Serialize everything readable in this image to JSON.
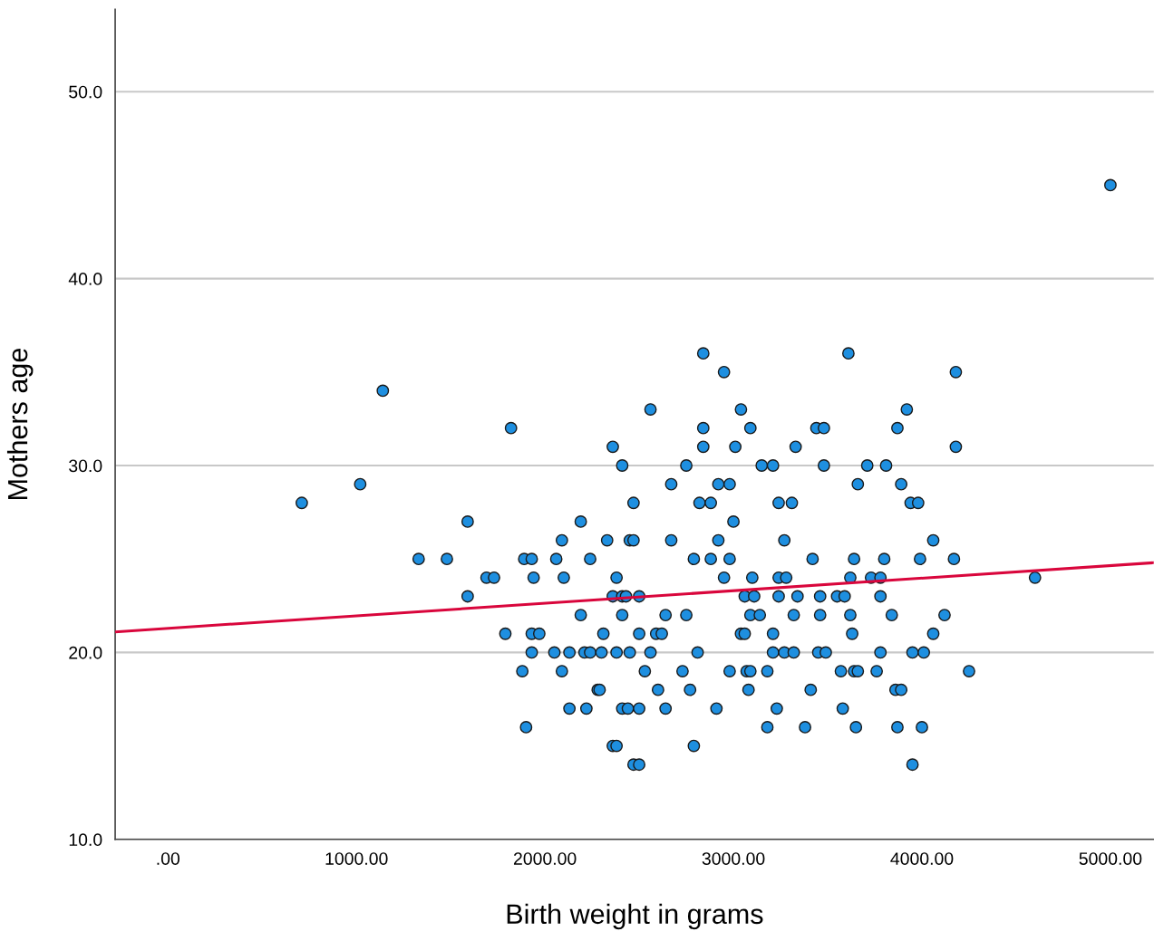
{
  "chart_data": {
    "type": "scatter",
    "xlabel": "Birth weight in grams",
    "ylabel": "Mothers age",
    "xlim": [
      -280,
      5230
    ],
    "ylim": [
      10,
      54.4
    ],
    "xticks": [
      {
        "value": 0,
        "label": ".00"
      },
      {
        "value": 1000,
        "label": "1000.00"
      },
      {
        "value": 2000,
        "label": "2000.00"
      },
      {
        "value": 3000,
        "label": "3000.00"
      },
      {
        "value": 4000,
        "label": "4000.00"
      },
      {
        "value": 5000,
        "label": "5000.00"
      }
    ],
    "yticks": [
      {
        "value": 10,
        "label": "10.0"
      },
      {
        "value": 20,
        "label": "20.0"
      },
      {
        "value": 30,
        "label": "30.0"
      },
      {
        "value": 40,
        "label": "40.0"
      },
      {
        "value": 50,
        "label": "50.0"
      }
    ],
    "grid": "y",
    "marker": "circle",
    "series": [
      {
        "color": "#1e8fe0",
        "x": [
          5000,
          2840,
          3610,
          2950,
          4180,
          1140,
          2560,
          3040,
          3920,
          1820,
          2840,
          3090,
          3440,
          3480,
          3870,
          2360,
          2840,
          3010,
          3330,
          4180,
          2410,
          2750,
          3150,
          3210,
          3480,
          3710,
          3810,
          1020,
          2670,
          2920,
          2980,
          3660,
          3890,
          710,
          2470,
          2820,
          2880,
          3240,
          3310,
          3940,
          3980,
          1590,
          2190,
          3000,
          2090,
          2330,
          2450,
          2470,
          2670,
          2920,
          3270,
          4060,
          1330,
          1480,
          1890,
          1930,
          2060,
          2240,
          2790,
          2880,
          2980,
          3420,
          3640,
          3800,
          3990,
          4170,
          1690,
          1730,
          1940,
          2100,
          2380,
          2950,
          3100,
          3240,
          3280,
          3620,
          3730,
          3780,
          4600,
          1590,
          2360,
          2410,
          2430,
          2500,
          3060,
          3110,
          3240,
          3340,
          3460,
          3550,
          3590,
          3780,
          2190,
          2410,
          2640,
          2750,
          3090,
          3140,
          3320,
          3460,
          3620,
          3840,
          4120,
          1790,
          1930,
          1970,
          2310,
          2500,
          2590,
          2620,
          3040,
          3060,
          3210,
          3630,
          4060,
          1930,
          2050,
          2130,
          2210,
          2240,
          2300,
          2380,
          2450,
          2560,
          2810,
          3210,
          3270,
          3320,
          3450,
          3490,
          3780,
          3950,
          4010,
          1880,
          2090,
          2530,
          2730,
          2980,
          3070,
          3090,
          3180,
          3570,
          3640,
          3660,
          3760,
          4250,
          2280,
          2290,
          2600,
          2770,
          3080,
          3410,
          3860,
          3890,
          2130,
          2220,
          2410,
          2440,
          2500,
          2640,
          2910,
          3230,
          3580,
          1900,
          3180,
          3380,
          3650,
          3870,
          4000,
          2360,
          2380,
          2790,
          2470,
          2500,
          3950
        ],
        "values": [
          45,
          36,
          36,
          35,
          35,
          34,
          33,
          33,
          33,
          32,
          32,
          32,
          32,
          32,
          32,
          31,
          31,
          31,
          31,
          31,
          30,
          30,
          30,
          30,
          30,
          30,
          30,
          29,
          29,
          29,
          29,
          29,
          29,
          28,
          28,
          28,
          28,
          28,
          28,
          28,
          28,
          27,
          27,
          27,
          26,
          26,
          26,
          26,
          26,
          26,
          26,
          26,
          25,
          25,
          25,
          25,
          25,
          25,
          25,
          25,
          25,
          25,
          25,
          25,
          25,
          25,
          24,
          24,
          24,
          24,
          24,
          24,
          24,
          24,
          24,
          24,
          24,
          24,
          24,
          23,
          23,
          23,
          23,
          23,
          23,
          23,
          23,
          23,
          23,
          23,
          23,
          23,
          22,
          22,
          22,
          22,
          22,
          22,
          22,
          22,
          22,
          22,
          22,
          21,
          21,
          21,
          21,
          21,
          21,
          21,
          21,
          21,
          21,
          21,
          21,
          20,
          20,
          20,
          20,
          20,
          20,
          20,
          20,
          20,
          20,
          20,
          20,
          20,
          20,
          20,
          20,
          20,
          20,
          19,
          19,
          19,
          19,
          19,
          19,
          19,
          19,
          19,
          19,
          19,
          19,
          19,
          18,
          18,
          18,
          18,
          18,
          18,
          18,
          18,
          17,
          17,
          17,
          17,
          17,
          17,
          17,
          17,
          17,
          16,
          16,
          16,
          16,
          16,
          16,
          15,
          15,
          15,
          14,
          14,
          14
        ]
      },
      {
        "type": "line",
        "color": "#d9063c",
        "x": [
          -280,
          5230
        ],
        "values": [
          21.1,
          24.8
        ],
        "marker": "none"
      }
    ]
  }
}
